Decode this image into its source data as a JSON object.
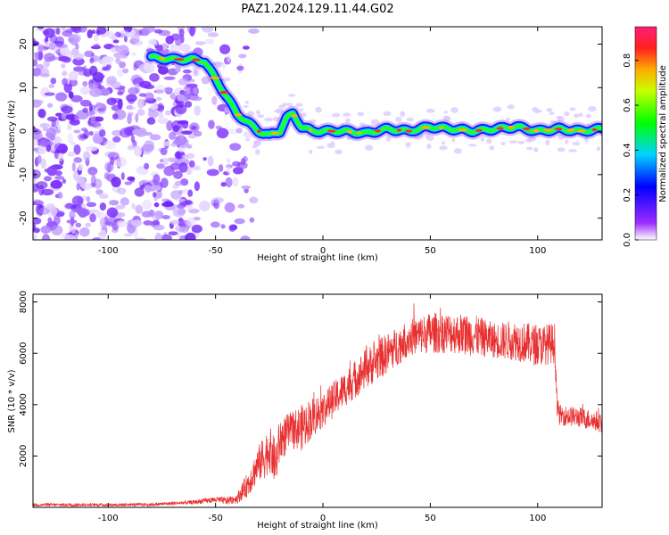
{
  "title": "PAZ1.2024.129.11.44.G02",
  "chart_data": [
    {
      "type": "heatmap",
      "xlabel": "Height of straight line (km)",
      "ylabel": "Frequency (Hz)",
      "xlim": [
        -135,
        130
      ],
      "ylim": [
        -25,
        24
      ],
      "xticks": [
        -100,
        -50,
        0,
        50,
        100
      ],
      "yticks": [
        20,
        10,
        0,
        -10,
        -20
      ],
      "colorbar": {
        "label": "Normalized spectral amplitude",
        "range": [
          0.0,
          0.95
        ],
        "ticks": [
          0.0,
          0.2,
          0.4,
          0.6,
          0.8
        ],
        "colormap": "rainbow"
      },
      "ridge": {
        "x": [
          -80,
          -70,
          -60,
          -55,
          -50,
          -45,
          -40,
          -35,
          -30,
          -25,
          -20,
          -17,
          -14,
          -10,
          -5,
          0,
          10,
          20,
          30,
          40,
          50,
          60,
          70,
          80,
          90,
          100,
          110,
          120,
          130
        ],
        "y": [
          17,
          16.5,
          16.5,
          16,
          12,
          8,
          4,
          2,
          0,
          -1,
          0,
          3,
          4,
          1,
          0,
          0,
          0,
          -0.5,
          0.5,
          0,
          1,
          0.5,
          0,
          0.5,
          1,
          0,
          0.5,
          0,
          0.5
        ]
      },
      "noise_region": {
        "x_range": [
          -135,
          -50
        ],
        "note_free": true
      }
    },
    {
      "type": "line",
      "xlabel": "Height of straight line (km)",
      "ylabel": "SNR (10 * v/v)",
      "xlim": [
        -135,
        130
      ],
      "ylim": [
        0,
        8300
      ],
      "xticks": [
        -100,
        -50,
        0,
        50,
        100
      ],
      "yticks": [
        2000,
        4000,
        6000,
        8000
      ],
      "series": [
        {
          "color": "#e83030",
          "x": [
            -135,
            -100,
            -80,
            -60,
            -50,
            -45,
            -40,
            -35,
            -30,
            -27,
            -25,
            -22,
            -20,
            -15,
            -10,
            -5,
            0,
            10,
            20,
            30,
            40,
            50,
            60,
            70,
            80,
            90,
            100,
            108,
            109,
            110,
            120,
            130
          ],
          "y": [
            100,
            100,
            110,
            200,
            300,
            250,
            350,
            900,
            1700,
            2000,
            2300,
            1700,
            2600,
            3000,
            3100,
            3500,
            3800,
            4600,
            5400,
            6000,
            6600,
            6800,
            6800,
            6700,
            6500,
            6500,
            6300,
            6400,
            4000,
            3600,
            3500,
            3300
          ],
          "spread": [
            60,
            60,
            60,
            80,
            120,
            150,
            200,
            500,
            700,
            900,
            900,
            900,
            900,
            700,
            900,
            800,
            700,
            700,
            800,
            800,
            700,
            800,
            800,
            800,
            700,
            800,
            800,
            800,
            400,
            400,
            400,
            400
          ]
        }
      ]
    }
  ]
}
